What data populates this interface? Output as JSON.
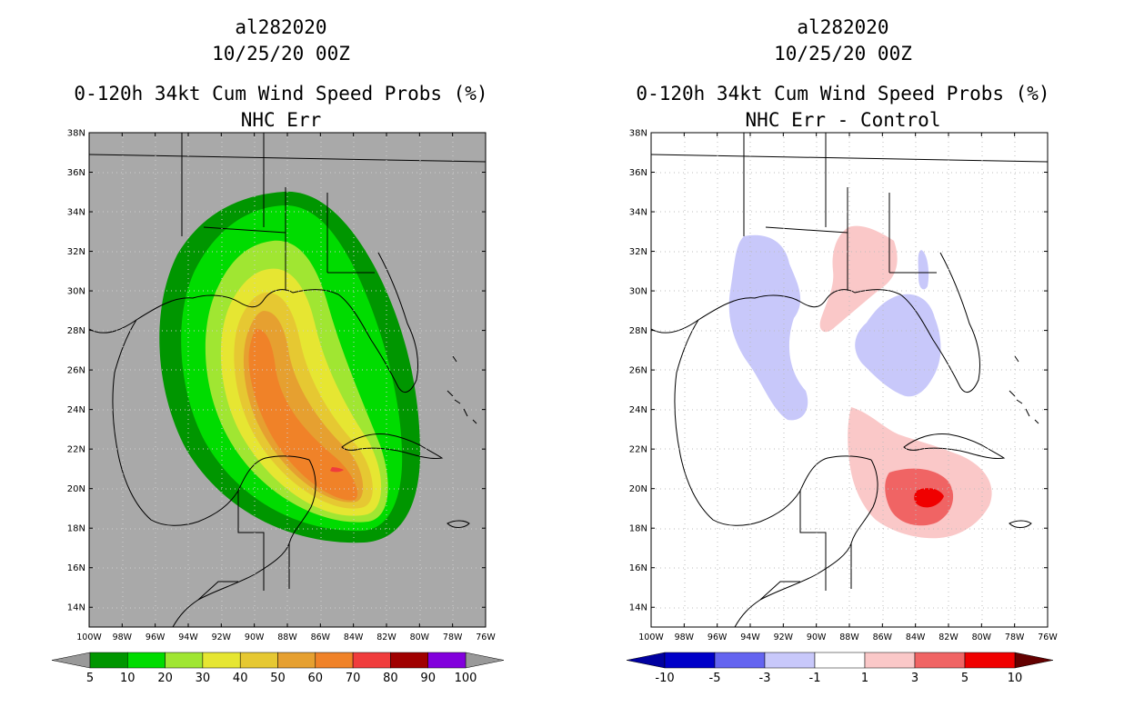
{
  "panels": [
    {
      "storm_id": "al282020",
      "datetime": "10/25/20 00Z",
      "title": "0-120h 34kt Cum Wind Speed Probs (%)",
      "subtitle": "NHC Err",
      "lat_labels": [
        "38N",
        "36N",
        "34N",
        "32N",
        "30N",
        "28N",
        "26N",
        "24N",
        "22N",
        "20N",
        "18N",
        "16N",
        "14N"
      ],
      "lon_labels": [
        "100W",
        "98W",
        "96W",
        "94W",
        "92W",
        "90W",
        "88W",
        "86W",
        "84W",
        "82W",
        "80W",
        "78W",
        "76W"
      ],
      "colorbar": {
        "labels": [
          "5",
          "10",
          "20",
          "30",
          "40",
          "50",
          "60",
          "70",
          "80",
          "90",
          "100"
        ],
        "colors": [
          "#009600",
          "#00dc00",
          "#a0e632",
          "#e6e632",
          "#e6c832",
          "#e6a030",
          "#f08228",
          "#f03c3c",
          "#a00000",
          "#8200dc"
        ],
        "under_color": "#999999",
        "over_color": "#999999"
      }
    },
    {
      "storm_id": "al282020",
      "datetime": "10/25/20 00Z",
      "title": "0-120h 34kt Cum Wind Speed Probs (%)",
      "subtitle": "NHC Err - Control",
      "lat_labels": [
        "38N",
        "36N",
        "34N",
        "32N",
        "30N",
        "28N",
        "26N",
        "24N",
        "22N",
        "20N",
        "18N",
        "16N",
        "14N"
      ],
      "lon_labels": [
        "100W",
        "98W",
        "96W",
        "94W",
        "92W",
        "90W",
        "88W",
        "86W",
        "84W",
        "82W",
        "80W",
        "78W",
        "76W"
      ],
      "colorbar": {
        "labels": [
          "-10",
          "-5",
          "-3",
          "-1",
          "1",
          "3",
          "5",
          "10"
        ],
        "colors": [
          "#0000c8",
          "#6464f0",
          "#c8c8fa",
          "#ffffff",
          "#fac8c8",
          "#f06464",
          "#f00000"
        ],
        "under_color": "#0000a0",
        "over_color": "#640000"
      }
    }
  ],
  "colors": {
    "map_background_left": "#a9a9a9",
    "map_background_right": "#ffffff"
  }
}
